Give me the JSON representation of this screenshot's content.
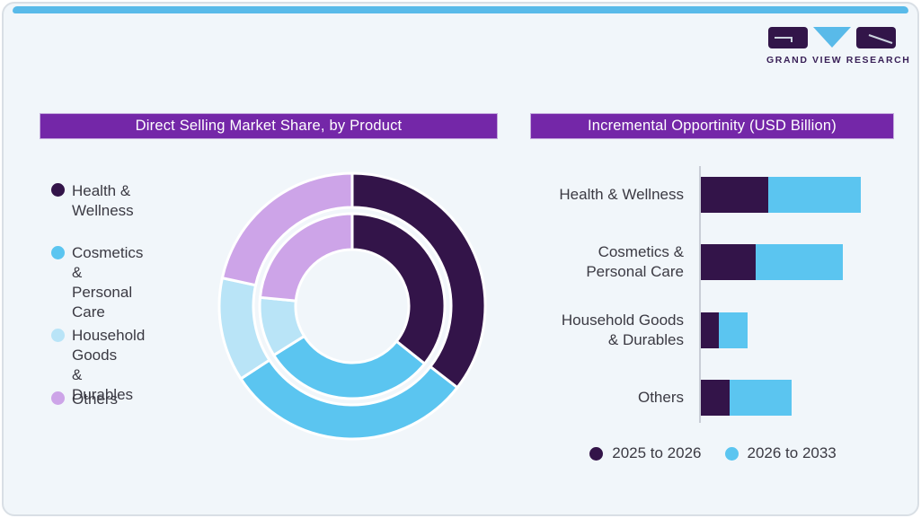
{
  "page": {
    "card_background": "#F1F6FA",
    "top_strip_color": "#59BAE9",
    "title_bar_color": "#7427A8",
    "text_color": "#3B3A43"
  },
  "logo": {
    "text": "GRAND VIEW RESEARCH",
    "mark_purple": "#321549",
    "mark_blue": "#59BAE9"
  },
  "chart_data": [
    {
      "type": "donut",
      "title": "Direct Selling Market Share, by Product",
      "legend_position": "left",
      "categories": [
        "Health & Wellness",
        "Cosmetics & Personal Care",
        "Household Goods & Durables",
        "Others"
      ],
      "categories_lines": [
        [
          "Health & Wellness"
        ],
        [
          "Cosmetics &",
          "Personal Care"
        ],
        [
          "Household Goods",
          "& Durables"
        ],
        [
          "Others"
        ]
      ],
      "colors": [
        "#331449",
        "#5BC5F0",
        "#B9E4F7",
        "#CDA4E8"
      ],
      "rings": [
        {
          "name": "outer",
          "values_pct": [
            35.5,
            30.3,
            12.6,
            21.6
          ]
        },
        {
          "name": "inner",
          "values_pct": [
            35.7,
            30.4,
            10.4,
            23.5
          ]
        }
      ],
      "start_angle_deg": 0,
      "direction": "clockwise"
    },
    {
      "type": "bar",
      "orientation": "horizontal-stacked",
      "title": "Incremental Opportinity (USD Billion)",
      "legend_position": "bottom",
      "categories": [
        "Health & Wellness",
        "Cosmetics & Personal Care",
        "Household Goods & Durables",
        "Others"
      ],
      "categories_lines": [
        [
          "Health & Wellness"
        ],
        [
          "Cosmetics &",
          "Personal Care"
        ],
        [
          "Household Goods",
          "& Durables"
        ],
        [
          "Others"
        ]
      ],
      "series": [
        {
          "name": "2025 to 2026",
          "color": "#331449",
          "values": [
            42,
            34,
            11,
            18
          ]
        },
        {
          "name": "2026 to 2033",
          "color": "#5BC5F0",
          "values": [
            58,
            55,
            18,
            39
          ]
        }
      ],
      "value_axis": {
        "labels_shown": false,
        "units": "relative, longest bar = 100"
      },
      "grid": false
    }
  ]
}
